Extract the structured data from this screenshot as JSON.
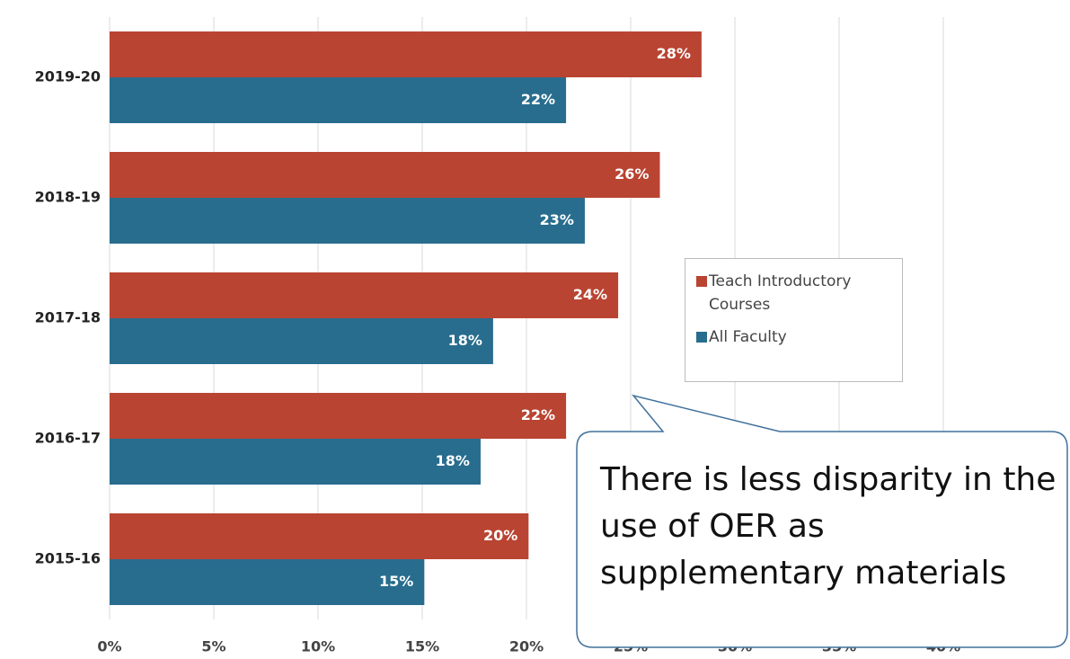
{
  "chart_data": {
    "type": "barh",
    "categories": [
      "2019-20",
      "2018-19",
      "2017-18",
      "2016-17",
      "2015-16"
    ],
    "series": [
      {
        "name": "Teach Introductory Courses",
        "color": "#b94432",
        "values": [
          28.4,
          26.4,
          24.4,
          21.9,
          20.1
        ],
        "value_labels": [
          "28%",
          "26%",
          "24%",
          "22%",
          "20%"
        ]
      },
      {
        "name": "All Faculty",
        "color": "#286d8e",
        "values": [
          21.9,
          22.8,
          18.4,
          17.8,
          15.1
        ],
        "value_labels": [
          "22%",
          "23%",
          "18%",
          "18%",
          "15%"
        ]
      }
    ],
    "xlim": [
      0,
      45
    ],
    "xticks": [
      {
        "value": 0,
        "label": "0%"
      },
      {
        "value": 5,
        "label": "5%"
      },
      {
        "value": 10,
        "label": "10%"
      },
      {
        "value": 15,
        "label": "15%"
      },
      {
        "value": 20,
        "label": "20%"
      },
      {
        "value": 25,
        "label": "25%"
      },
      {
        "value": 30,
        "label": "30%"
      },
      {
        "value": 35,
        "label": "35%"
      },
      {
        "value": 40,
        "label": "40%"
      }
    ],
    "grid": true,
    "annotation": "There is less disparity in the use of OER as supplementary materials"
  }
}
